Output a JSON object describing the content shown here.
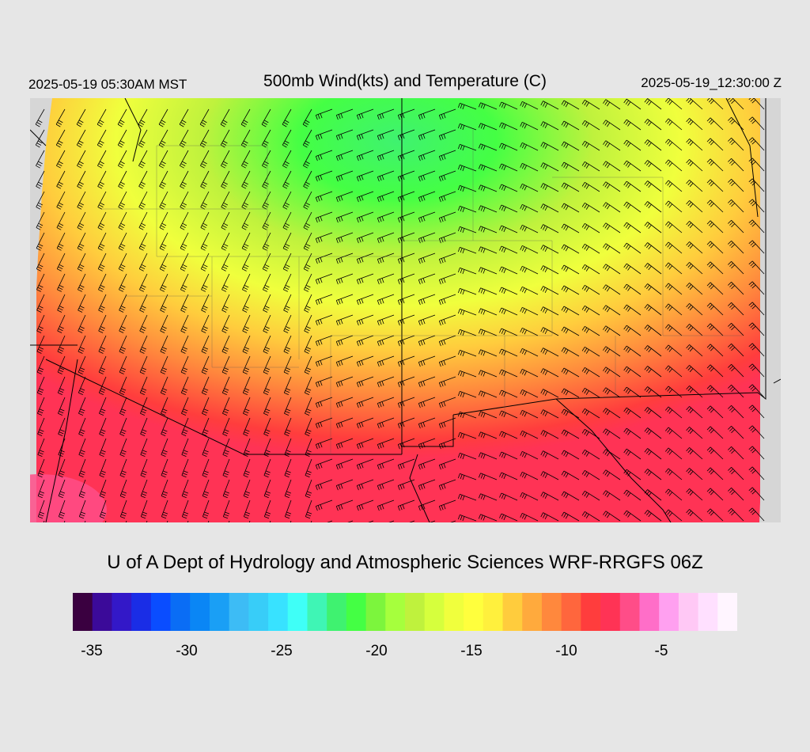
{
  "header": {
    "local_time": "2025-05-19 05:30AM MST",
    "title": "500mb Wind(kts) and Temperature (C)",
    "valid_time": "2025-05-19_12:30:00 Z"
  },
  "footer": {
    "credit": "U of A Dept of Hydrology and Atmospheric Sciences WRF-RRGFS 06Z"
  },
  "colorbar": {
    "min": -36,
    "max": -1,
    "colors": [
      "#3a0040",
      "#3b0a99",
      "#3318c8",
      "#1a2de6",
      "#0a4dff",
      "#0a6df5",
      "#0a86f5",
      "#1a9ff5",
      "#3dbcf5",
      "#38cdf8",
      "#38e2ff",
      "#3ffff7",
      "#3ff5b5",
      "#3ff270",
      "#44ff44",
      "#7cf53d",
      "#a6ff3d",
      "#bff23d",
      "#d6ff3d",
      "#f0ff3d",
      "#ffff3d",
      "#fff03d",
      "#ffcc3d",
      "#ffaa3d",
      "#ff883d",
      "#ff663d",
      "#ff3d3d",
      "#ff3355",
      "#ff4d88",
      "#ff6ec8",
      "#ffa0f0",
      "#ffc8f5",
      "#ffe0ff",
      "#fff5ff"
    ],
    "ticks": [
      {
        "label": "-35",
        "value": -35
      },
      {
        "label": "-30",
        "value": -30
      },
      {
        "label": "-25",
        "value": -25
      },
      {
        "label": "-20",
        "value": -20
      },
      {
        "label": "-15",
        "value": -15
      },
      {
        "label": "-10",
        "value": -10
      },
      {
        "label": "-5",
        "value": -5
      }
    ]
  },
  "map": {
    "field_colors": {
      "cold_core": "#3ff270",
      "green": "#44ff44",
      "yellow_green": "#bff23d",
      "yellow": "#f0ff3d",
      "orange": "#ff883d",
      "red": "#ff3d3d",
      "red_pink": "#ff3355",
      "pink": "#ff4d88",
      "border": "#000000"
    }
  }
}
